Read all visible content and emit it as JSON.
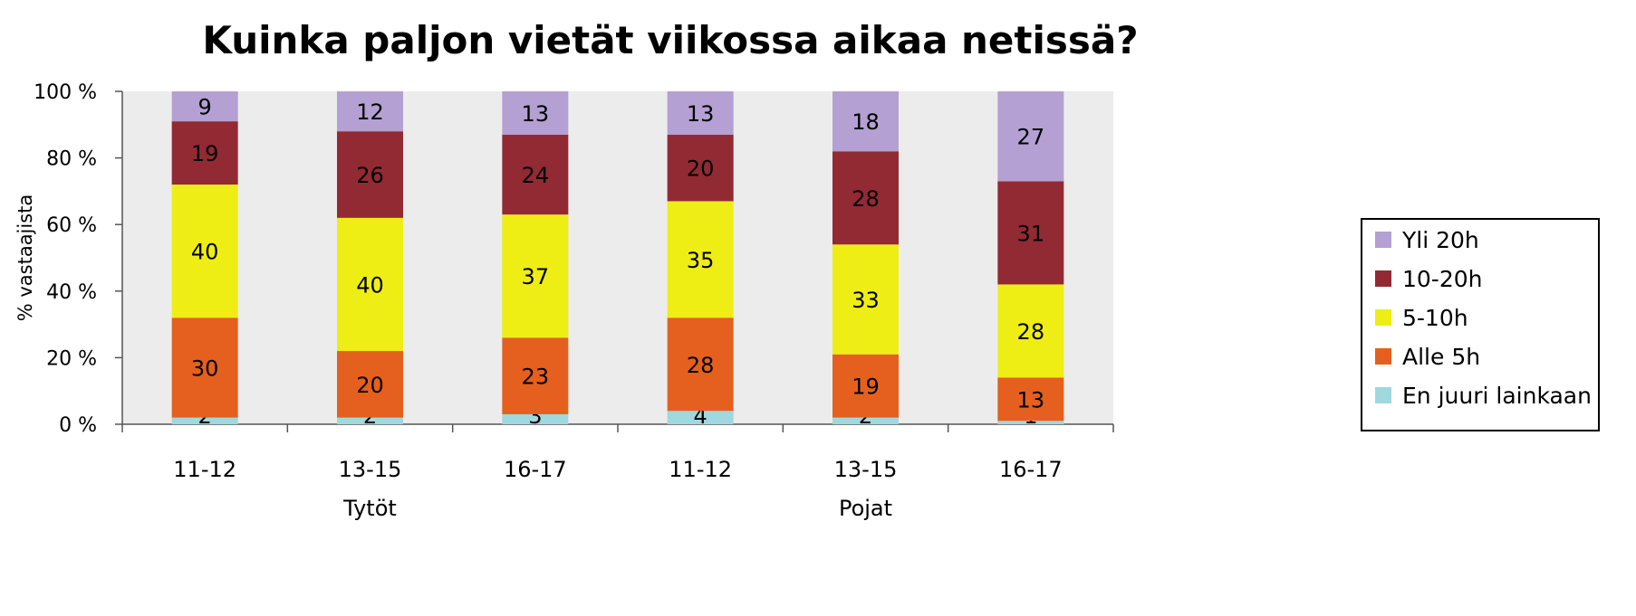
{
  "chart_data": {
    "type": "bar",
    "stacked": true,
    "title": "Kuinka paljon vietät viikossa aikaa netissä?",
    "ylabel": "% vastaajista",
    "ylim": [
      0,
      100
    ],
    "yticks": [
      "0 %",
      "20 %",
      "40 %",
      "60 %",
      "80 %",
      "100 %"
    ],
    "categories": [
      "11-12",
      "13-15",
      "16-17",
      "11-12",
      "13-15",
      "16-17"
    ],
    "groups": [
      {
        "label": "Tytöt",
        "categories": [
          0,
          1,
          2
        ]
      },
      {
        "label": "Pojat",
        "categories": [
          3,
          4,
          5
        ]
      }
    ],
    "series": [
      {
        "name": "En juuri lainkaan",
        "color": "#9fd8de",
        "values": [
          2,
          2,
          3,
          4,
          2,
          1
        ]
      },
      {
        "name": "Alle 5h",
        "color": "#e5601e",
        "values": [
          30,
          20,
          23,
          28,
          19,
          13
        ]
      },
      {
        "name": "5-10h",
        "color": "#eeee14",
        "values": [
          40,
          40,
          37,
          35,
          33,
          28
        ]
      },
      {
        "name": "10-20h",
        "color": "#922a33",
        "values": [
          19,
          26,
          24,
          20,
          28,
          31
        ]
      },
      {
        "name": "Yli 20h",
        "color": "#b4a0d2",
        "values": [
          9,
          12,
          13,
          13,
          18,
          27
        ]
      }
    ],
    "plot_background": "#ececec",
    "grid": false,
    "legend": "right"
  }
}
